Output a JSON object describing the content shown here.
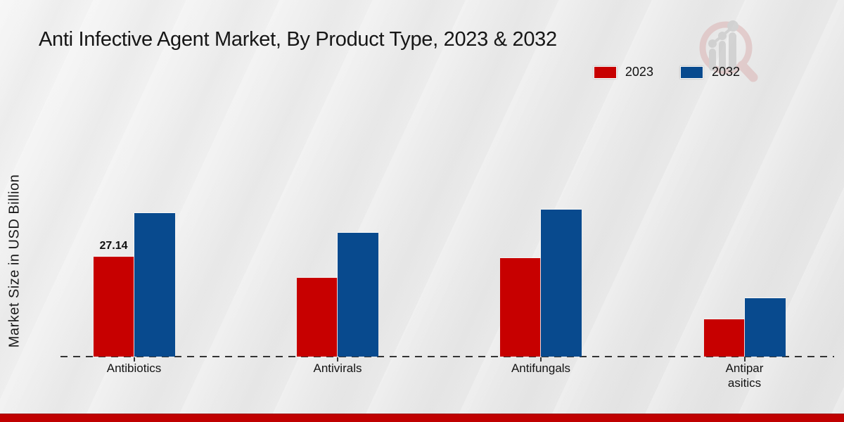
{
  "title": "Anti Infective Agent Market, By Product Type, 2023 & 2032",
  "y_axis": {
    "label": "Market Size in USD Billion"
  },
  "legend": {
    "position": "top-right",
    "items": [
      {
        "label": "2023",
        "color": "#c70000"
      },
      {
        "label": "2032",
        "color": "#084a8e"
      }
    ]
  },
  "chart_data": {
    "type": "bar",
    "title": "Anti Infective Agent Market, By Product Type, 2023 & 2032",
    "xlabel": "",
    "ylabel": "Market Size in USD Billion",
    "categories": [
      "Antibiotics",
      "Antivirals",
      "Antifungals",
      "Antiparasitics"
    ],
    "categories_display": [
      [
        "Antibiotics"
      ],
      [
        "Antivirals"
      ],
      [
        "Antifungals"
      ],
      [
        "Antipar",
        "asitics"
      ]
    ],
    "series": [
      {
        "name": "2023",
        "color": "#c70000",
        "values": [
          27.14,
          21.4,
          26.8,
          10.1
        ],
        "value_labels": [
          "27.14",
          "",
          "",
          ""
        ]
      },
      {
        "name": "2032",
        "color": "#084a8e",
        "values": [
          39.0,
          33.6,
          39.9,
          15.9
        ],
        "value_labels": [
          "",
          "",
          "",
          ""
        ]
      }
    ],
    "ylim": [
      0,
      45
    ],
    "grid": false,
    "legend_position": "top-right",
    "baseline_style": "dashed",
    "annotations": [
      {
        "category": "Antibiotics",
        "series": "2023",
        "text": "27.14"
      }
    ]
  },
  "colors": {
    "series_2023": "#c70000",
    "series_2032": "#084a8e",
    "footer_bar": "#c00000",
    "baseline": "#343434",
    "background": "#ebebeb"
  },
  "branding": {
    "logo_icon": "magnifier-bar-chart-logo"
  }
}
